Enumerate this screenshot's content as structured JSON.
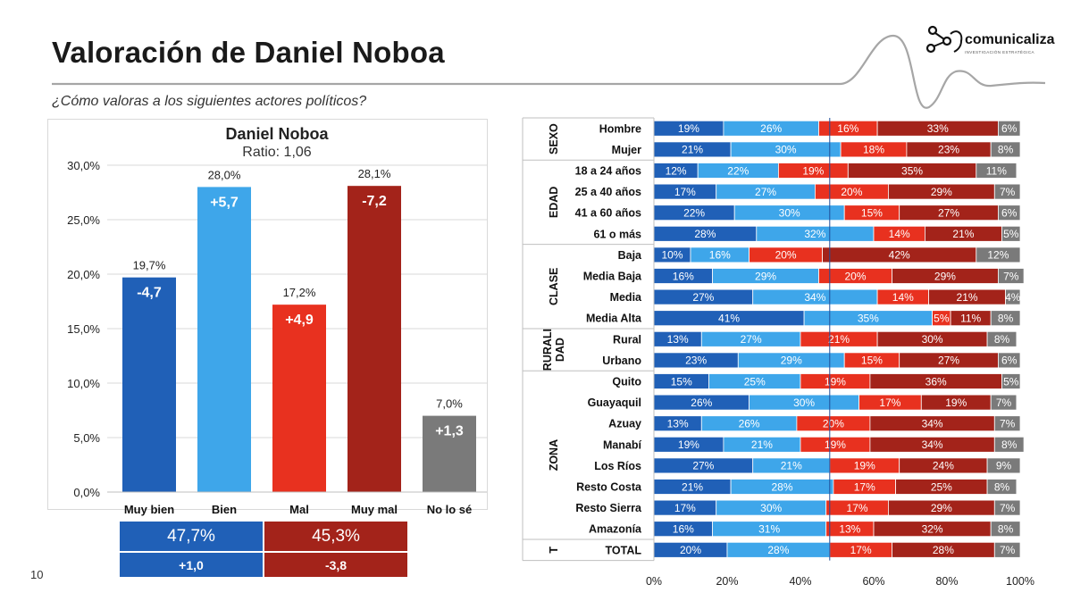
{
  "header": {
    "title": "Valoración de Daniel Noboa",
    "subtitle": "¿Cómo valoras a los siguientes actores políticos?",
    "logo_text": "comunicaliza",
    "logo_tagline": "INVESTIGACIÓN ESTRATÉGICA",
    "page_number": "10"
  },
  "colors": {
    "muy_bien": "#2060b7",
    "bien": "#3ea6ea",
    "mal": "#e8311f",
    "muy_mal": "#a3231a",
    "no_lo_se": "#7a7a7a"
  },
  "chart_data": [
    {
      "type": "bar",
      "title": "Daniel Noboa",
      "subtitle": "Ratio: 1,06",
      "categories": [
        "Muy bien",
        "Bien",
        "Mal",
        "Muy mal",
        "No lo sé"
      ],
      "values": [
        19.7,
        28.0,
        17.2,
        28.1,
        7.0
      ],
      "value_labels": [
        "19,7%",
        "28,0%",
        "17,2%",
        "28,1%",
        "7,0%"
      ],
      "changes": [
        "-4,7",
        "+5,7",
        "+4,9",
        "-7,2",
        "+1,3"
      ],
      "ylim": [
        0,
        30
      ],
      "yticks": [
        "0,0%",
        "5,0%",
        "10,0%",
        "15,0%",
        "20,0%",
        "25,0%",
        "30,0%"
      ],
      "grid": true,
      "summary": {
        "positive_total": "47,7%",
        "negative_total": "45,3%",
        "positive_change": "+1,0",
        "negative_change": "-3,8"
      }
    },
    {
      "type": "bar",
      "orientation": "horizontal",
      "stacked": true,
      "series_order": [
        "muy_bien",
        "bien",
        "mal",
        "muy_mal",
        "no_lo_se"
      ],
      "xlim": [
        0,
        100
      ],
      "xticks": [
        "0%",
        "20%",
        "40%",
        "60%",
        "80%",
        "100%"
      ],
      "groups": [
        {
          "label": "SEXO",
          "rows": [
            {
              "label": "Hombre",
              "values": [
                19,
                26,
                16,
                33,
                6
              ]
            },
            {
              "label": "Mujer",
              "values": [
                21,
                30,
                18,
                23,
                8
              ]
            }
          ]
        },
        {
          "label": "EDAD",
          "rows": [
            {
              "label": "18 a 24 años",
              "values": [
                12,
                22,
                19,
                35,
                11
              ]
            },
            {
              "label": "25 a 40 años",
              "values": [
                17,
                27,
                20,
                29,
                7
              ]
            },
            {
              "label": "41 a 60 años",
              "values": [
                22,
                30,
                15,
                27,
                6
              ]
            },
            {
              "label": "61 o más",
              "values": [
                28,
                32,
                14,
                21,
                5
              ]
            }
          ]
        },
        {
          "label": "CLASE",
          "rows": [
            {
              "label": "Baja",
              "values": [
                10,
                16,
                20,
                42,
                12
              ]
            },
            {
              "label": "Media Baja",
              "values": [
                16,
                29,
                20,
                29,
                7
              ]
            },
            {
              "label": "Media",
              "values": [
                27,
                34,
                14,
                21,
                4
              ]
            },
            {
              "label": "Media Alta",
              "values": [
                41,
                35,
                5,
                11,
                8
              ]
            }
          ]
        },
        {
          "label": "RURALI DAD",
          "label_lines": [
            "RURALI",
            "DAD"
          ],
          "rows": [
            {
              "label": "Rural",
              "values": [
                13,
                27,
                21,
                30,
                8
              ]
            },
            {
              "label": "Urbano",
              "values": [
                23,
                29,
                15,
                27,
                6
              ]
            }
          ]
        },
        {
          "label": "ZONA",
          "rows": [
            {
              "label": "Quito",
              "values": [
                15,
                25,
                19,
                36,
                5
              ]
            },
            {
              "label": "Guayaquil",
              "values": [
                26,
                30,
                17,
                19,
                7
              ]
            },
            {
              "label": "Azuay",
              "values": [
                13,
                26,
                20,
                34,
                7
              ]
            },
            {
              "label": "Manabí",
              "values": [
                19,
                21,
                19,
                34,
                8
              ]
            },
            {
              "label": "Los Ríos",
              "values": [
                27,
                21,
                19,
                24,
                9
              ]
            },
            {
              "label": "Resto Costa",
              "values": [
                21,
                28,
                17,
                25,
                8
              ]
            },
            {
              "label": "Resto Sierra",
              "values": [
                17,
                30,
                17,
                29,
                7
              ]
            },
            {
              "label": "Amazonía",
              "values": [
                16,
                31,
                13,
                32,
                8
              ]
            }
          ]
        },
        {
          "label": "T",
          "rows": [
            {
              "label": "TOTAL",
              "values": [
                20,
                28,
                17,
                28,
                7
              ]
            }
          ]
        }
      ]
    }
  ]
}
